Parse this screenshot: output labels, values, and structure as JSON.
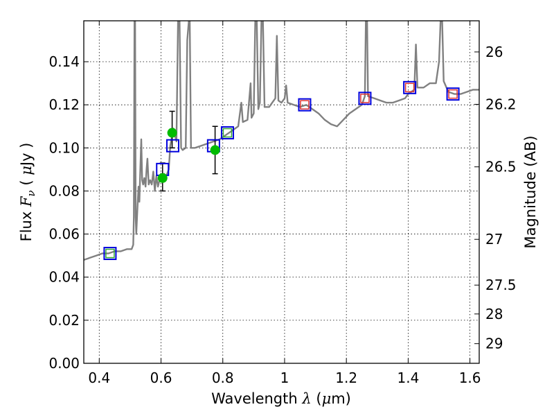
{
  "chart_data": {
    "type": "line",
    "title": "",
    "xlabel": "Wavelength",
    "xlabel_symbol": "λ",
    "xlabel_unit_open": " (",
    "xlabel_unit_mu": "μ",
    "xlabel_unit_close": "m)",
    "ylabel": "Flux",
    "ylabel_symbol": "F",
    "ylabel_subscript": "ν",
    "ylabel_paren_open": " ( ",
    "ylabel_unit_mu": "μ",
    "ylabel_unit_close": "Jy )",
    "y2label": "Magnitude (AB)",
    "xlim": [
      0.35,
      1.63
    ],
    "ylim": [
      0.0,
      0.159
    ],
    "x_ticks": [
      0.4,
      0.6,
      0.8,
      1.0,
      1.2,
      1.4,
      1.6
    ],
    "x_tick_labels": [
      "0.4",
      "0.6",
      "0.8",
      "1",
      "1.2",
      "1.4",
      "1.6"
    ],
    "y_ticks": [
      0.0,
      0.02,
      0.04,
      0.06,
      0.08,
      0.1,
      0.12,
      0.14
    ],
    "y_tick_labels": [
      "0.00",
      "0.02",
      "0.04",
      "0.06",
      "0.08",
      "0.10",
      "0.12",
      "0.14"
    ],
    "y2_ticks": [
      {
        "mag": 26,
        "label": "26"
      },
      {
        "mag": 26.2,
        "label": "26.2"
      },
      {
        "mag": 26.5,
        "label": "26.5"
      },
      {
        "mag": 27,
        "label": "27"
      },
      {
        "mag": 27.5,
        "label": "27.5"
      },
      {
        "mag": 28,
        "label": "28"
      },
      {
        "mag": 29,
        "label": "29"
      }
    ],
    "grid": true,
    "colors": {
      "sed": "#808080",
      "observed": "#00bb00",
      "model_box": "#0000dd",
      "inner_green": "#33aa33",
      "inner_red": "#dd3333",
      "errorbar": "#000000"
    },
    "series": [
      {
        "kind": "sed_line",
        "points": [
          [
            0.35,
            0.048
          ],
          [
            0.37,
            0.049
          ],
          [
            0.39,
            0.05
          ],
          [
            0.41,
            0.051
          ],
          [
            0.43,
            0.051
          ],
          [
            0.45,
            0.052
          ],
          [
            0.47,
            0.052
          ],
          [
            0.49,
            0.053
          ],
          [
            0.505,
            0.053
          ],
          [
            0.51,
            0.055
          ],
          [
            0.512,
            0.068
          ],
          [
            0.514,
            0.159
          ],
          [
            0.516,
            0.159
          ],
          [
            0.518,
            0.068
          ],
          [
            0.52,
            0.06
          ],
          [
            0.523,
            0.07
          ],
          [
            0.527,
            0.082
          ],
          [
            0.53,
            0.075
          ],
          [
            0.533,
            0.09
          ],
          [
            0.536,
            0.104
          ],
          [
            0.539,
            0.085
          ],
          [
            0.542,
            0.083
          ],
          [
            0.546,
            0.086
          ],
          [
            0.55,
            0.082
          ],
          [
            0.553,
            0.09
          ],
          [
            0.556,
            0.095
          ],
          [
            0.56,
            0.083
          ],
          [
            0.565,
            0.085
          ],
          [
            0.57,
            0.083
          ],
          [
            0.575,
            0.089
          ],
          [
            0.58,
            0.08
          ],
          [
            0.585,
            0.087
          ],
          [
            0.59,
            0.082
          ],
          [
            0.6,
            0.088
          ],
          [
            0.605,
            0.086
          ],
          [
            0.61,
            0.088
          ],
          [
            0.615,
            0.087
          ],
          [
            0.62,
            0.088
          ],
          [
            0.625,
            0.09
          ],
          [
            0.63,
            0.101
          ],
          [
            0.64,
            0.109
          ],
          [
            0.65,
            0.103
          ],
          [
            0.655,
            0.159
          ],
          [
            0.66,
            0.159
          ],
          [
            0.665,
            0.1
          ],
          [
            0.67,
            0.099
          ],
          [
            0.68,
            0.1
          ],
          [
            0.685,
            0.15
          ],
          [
            0.69,
            0.159
          ],
          [
            0.693,
            0.159
          ],
          [
            0.697,
            0.1
          ],
          [
            0.71,
            0.1
          ],
          [
            0.73,
            0.101
          ],
          [
            0.75,
            0.102
          ],
          [
            0.77,
            0.103
          ],
          [
            0.79,
            0.104
          ],
          [
            0.81,
            0.106
          ],
          [
            0.83,
            0.108
          ],
          [
            0.85,
            0.11
          ],
          [
            0.86,
            0.121
          ],
          [
            0.865,
            0.112
          ],
          [
            0.88,
            0.113
          ],
          [
            0.89,
            0.13
          ],
          [
            0.893,
            0.114
          ],
          [
            0.9,
            0.116
          ],
          [
            0.905,
            0.159
          ],
          [
            0.91,
            0.159
          ],
          [
            0.915,
            0.118
          ],
          [
            0.92,
            0.121
          ],
          [
            0.925,
            0.159
          ],
          [
            0.93,
            0.159
          ],
          [
            0.935,
            0.119
          ],
          [
            0.95,
            0.119
          ],
          [
            0.96,
            0.121
          ],
          [
            0.97,
            0.123
          ],
          [
            0.975,
            0.152
          ],
          [
            0.98,
            0.122
          ],
          [
            0.99,
            0.121
          ],
          [
            1.0,
            0.123
          ],
          [
            1.005,
            0.129
          ],
          [
            1.01,
            0.121
          ],
          [
            1.03,
            0.12
          ],
          [
            1.05,
            0.119
          ],
          [
            1.07,
            0.12
          ],
          [
            1.09,
            0.118
          ],
          [
            1.11,
            0.116
          ],
          [
            1.13,
            0.113
          ],
          [
            1.15,
            0.111
          ],
          [
            1.17,
            0.11
          ],
          [
            1.19,
            0.113
          ],
          [
            1.21,
            0.116
          ],
          [
            1.23,
            0.118
          ],
          [
            1.25,
            0.12
          ],
          [
            1.26,
            0.124
          ],
          [
            1.263,
            0.159
          ],
          [
            1.267,
            0.159
          ],
          [
            1.27,
            0.124
          ],
          [
            1.29,
            0.123
          ],
          [
            1.31,
            0.122
          ],
          [
            1.33,
            0.121
          ],
          [
            1.35,
            0.121
          ],
          [
            1.37,
            0.122
          ],
          [
            1.39,
            0.123
          ],
          [
            1.4,
            0.125
          ],
          [
            1.42,
            0.127
          ],
          [
            1.425,
            0.148
          ],
          [
            1.43,
            0.128
          ],
          [
            1.45,
            0.128
          ],
          [
            1.47,
            0.13
          ],
          [
            1.49,
            0.13
          ],
          [
            1.5,
            0.14
          ],
          [
            1.505,
            0.159
          ],
          [
            1.51,
            0.159
          ],
          [
            1.515,
            0.131
          ],
          [
            1.53,
            0.126
          ],
          [
            1.55,
            0.125
          ],
          [
            1.57,
            0.125
          ],
          [
            1.59,
            0.126
          ],
          [
            1.61,
            0.127
          ],
          [
            1.63,
            0.127
          ]
        ]
      },
      {
        "kind": "observed",
        "points": [
          {
            "x": 0.605,
            "y": 0.086,
            "ylow": 0.08,
            "yhigh": 0.093
          },
          {
            "x": 0.636,
            "y": 0.107,
            "ylow": 0.1,
            "yhigh": 0.117
          },
          {
            "x": 0.775,
            "y": 0.099,
            "ylow": 0.088,
            "yhigh": 0.11
          }
        ]
      },
      {
        "kind": "model_boxes",
        "points": [
          {
            "x": 0.435,
            "y": 0.051,
            "inner": "green"
          },
          {
            "x": 0.605,
            "y": 0.09,
            "inner": "none"
          },
          {
            "x": 0.638,
            "y": 0.101,
            "inner": "none"
          },
          {
            "x": 0.77,
            "y": 0.101,
            "inner": "none"
          },
          {
            "x": 0.815,
            "y": 0.107,
            "inner": "green"
          },
          {
            "x": 1.065,
            "y": 0.12,
            "inner": "red"
          },
          {
            "x": 1.26,
            "y": 0.123,
            "inner": "red"
          },
          {
            "x": 1.405,
            "y": 0.128,
            "inner": "red"
          },
          {
            "x": 1.545,
            "y": 0.125,
            "inner": "red"
          }
        ]
      }
    ]
  }
}
